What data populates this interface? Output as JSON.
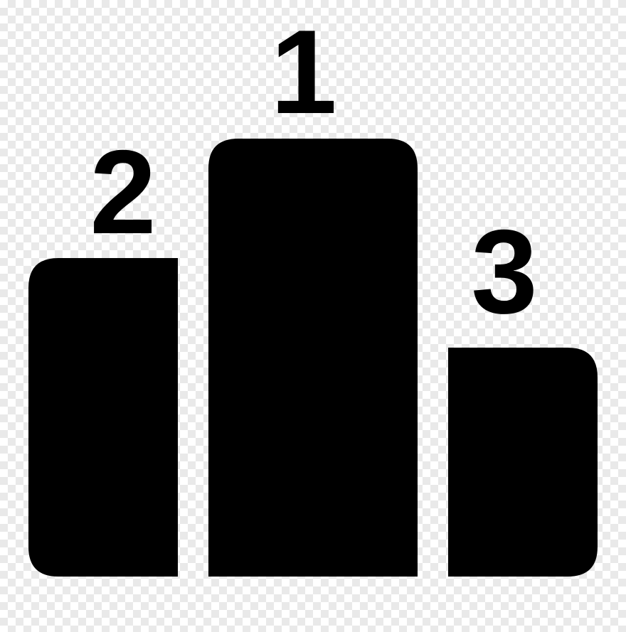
{
  "icon": {
    "name": "podium-icon",
    "fill_color": "#000000",
    "background": "transparent-checkerboard"
  },
  "places": [
    {
      "label": "1"
    },
    {
      "label": "2"
    },
    {
      "label": "3"
    }
  ]
}
